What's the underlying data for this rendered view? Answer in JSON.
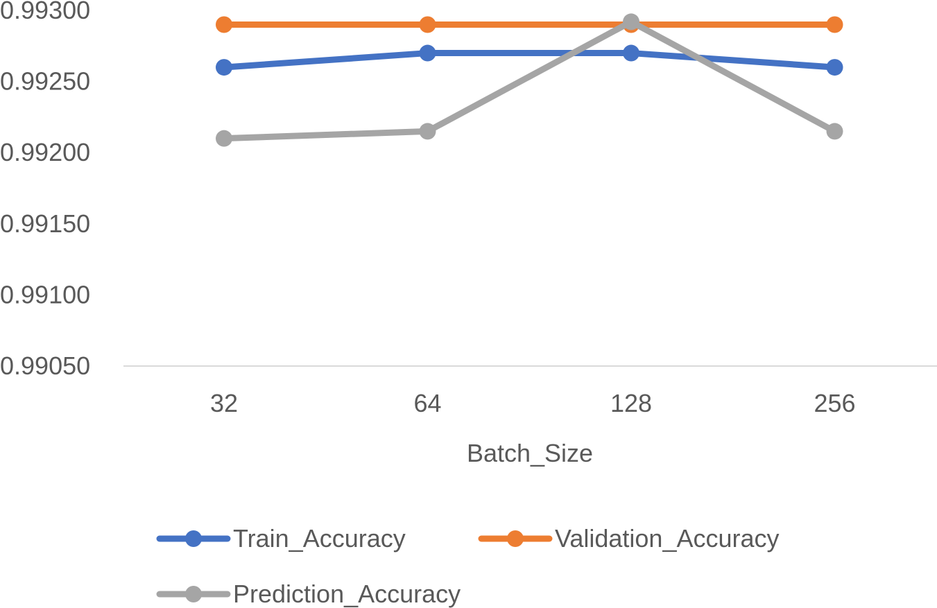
{
  "chart_data": {
    "type": "line",
    "title": "",
    "xlabel": "Batch_Size",
    "ylabel": "",
    "categories": [
      "32",
      "64",
      "128",
      "256"
    ],
    "ylim": [
      0.9905,
      0.993
    ],
    "yticks": [
      "0.99050",
      "0.99100",
      "0.99150",
      "0.99200",
      "0.99250",
      "0.99300"
    ],
    "grid": false,
    "legend_position": "bottom",
    "series": [
      {
        "name": "Train_Accuracy",
        "color": "#4472C4",
        "values": [
          0.9926,
          0.9927,
          0.9927,
          0.9926
        ]
      },
      {
        "name": "Validation_Accuracy",
        "color": "#ED7D31",
        "values": [
          0.9929,
          0.9929,
          0.9929,
          0.9929
        ]
      },
      {
        "name": "Prediction_Accuracy",
        "color": "#A5A5A5",
        "values": [
          0.9921,
          0.99215,
          0.99292,
          0.99215
        ]
      }
    ]
  }
}
